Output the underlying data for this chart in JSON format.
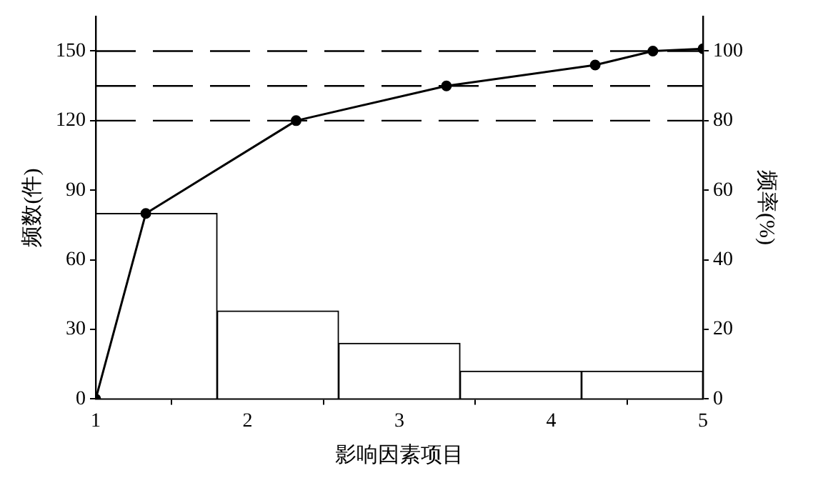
{
  "chart_data": {
    "type": "histogram",
    "xlabel": "影响因素项目",
    "ylabel": "频数(件)",
    "y2label": "频率(%)",
    "bins": [
      1,
      1.8,
      2.6,
      3.4,
      4.2,
      5
    ],
    "values": [
      80,
      38,
      24,
      12,
      12
    ],
    "color": "#ffffff",
    "series": [
      {
        "type": "line",
        "axis": "y",
        "color": "#000000",
        "x": [
          1,
          1.33,
          2.32,
          3.31,
          4.29,
          4.67,
          5
        ],
        "values": [
          0,
          80,
          120,
          135,
          144,
          150,
          151
        ]
      }
    ],
    "xlim": [
      1,
      5
    ],
    "xticks": [
      1,
      2,
      3,
      4,
      5
    ],
    "ylim": [
      0,
      165
    ],
    "yticks": [
      0,
      30,
      60,
      90,
      120,
      150
    ],
    "y2lim": [
      0,
      110
    ],
    "y2ticks": [
      0,
      20,
      40,
      60,
      80,
      100
    ],
    "ref_lines": [
      {
        "axis": "y",
        "value": 150,
        "label": null,
        "line_style": "dashed"
      },
      {
        "axis": "y",
        "value": 135,
        "label": null,
        "line_style": "dashed"
      },
      {
        "axis": "y",
        "value": 120,
        "label": null,
        "line_style": "dashed"
      }
    ],
    "grid": false,
    "legend": false,
    "marker": "circle",
    "line_style": "solid"
  }
}
